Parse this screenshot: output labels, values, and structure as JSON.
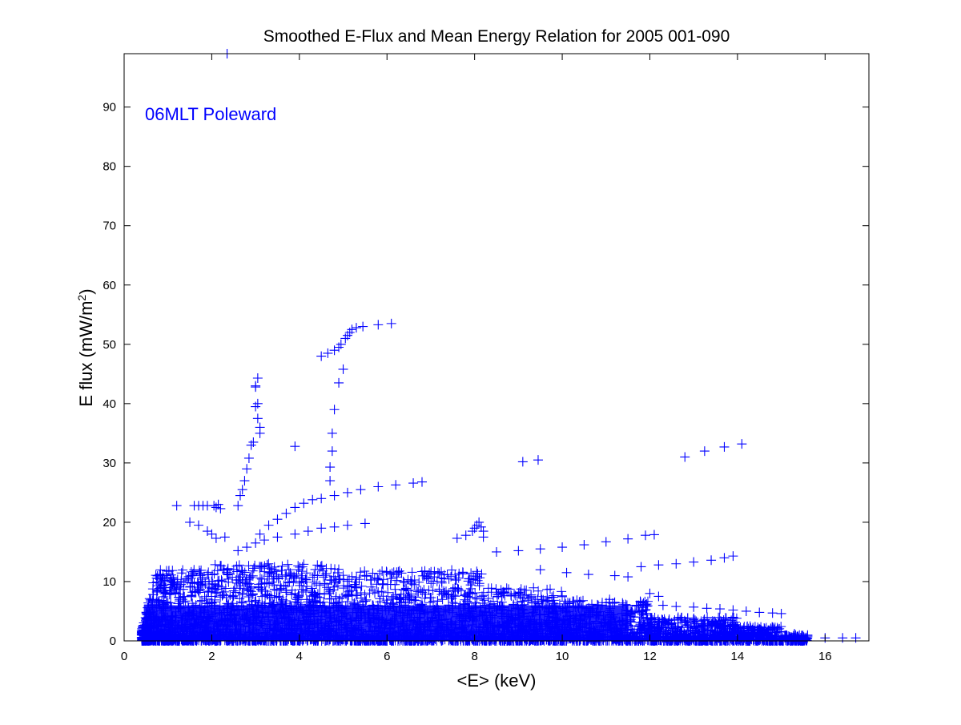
{
  "chart_data": {
    "type": "scatter",
    "title": "Smoothed E-Flux and Mean Energy Relation for 2005 001-090",
    "xlabel": "<E> (keV)",
    "ylabel_main": "E flux (mW/m",
    "ylabel_sup": "2",
    "ylabel_end": ")",
    "annotation": "06MLT Poleward",
    "xlim": [
      0,
      17
    ],
    "ylim": [
      0,
      99
    ],
    "xticks": [
      0,
      2,
      4,
      6,
      8,
      10,
      12,
      14,
      16
    ],
    "yticks": [
      0,
      10,
      20,
      30,
      40,
      50,
      60,
      70,
      80,
      90
    ],
    "grid": false,
    "marker": "+",
    "marker_color": "#0000ff",
    "series": [
      {
        "points": [
          [
            2.35,
            99.0
          ],
          [
            3.0,
            43.0
          ],
          [
            3.05,
            44.3
          ],
          [
            3.0,
            42.8
          ],
          [
            3.05,
            40.0
          ],
          [
            3.0,
            39.5
          ],
          [
            3.05,
            37.5
          ],
          [
            3.1,
            36.0
          ],
          [
            3.1,
            35.0
          ],
          [
            2.95,
            33.5
          ],
          [
            2.9,
            33.0
          ],
          [
            2.85,
            30.8
          ],
          [
            2.8,
            29.0
          ],
          [
            2.75,
            27.0
          ],
          [
            2.7,
            25.5
          ],
          [
            2.65,
            24.5
          ],
          [
            2.6,
            22.8
          ],
          [
            4.5,
            48.0
          ],
          [
            4.65,
            48.5
          ],
          [
            4.8,
            49.0
          ],
          [
            4.9,
            49.5
          ],
          [
            4.95,
            50.0
          ],
          [
            5.05,
            51.0
          ],
          [
            5.1,
            51.5
          ],
          [
            5.15,
            52.0
          ],
          [
            5.2,
            52.5
          ],
          [
            5.3,
            52.8
          ],
          [
            5.45,
            53.0
          ],
          [
            5.8,
            53.3
          ],
          [
            6.1,
            53.5
          ],
          [
            5.0,
            45.8
          ],
          [
            4.9,
            43.5
          ],
          [
            4.8,
            39.0
          ],
          [
            4.75,
            35.0
          ],
          [
            4.75,
            32.0
          ],
          [
            4.7,
            29.3
          ],
          [
            4.7,
            27.0
          ],
          [
            3.9,
            32.8
          ],
          [
            9.1,
            30.2
          ],
          [
            9.45,
            30.5
          ],
          [
            12.8,
            31.0
          ],
          [
            13.25,
            32.0
          ],
          [
            13.7,
            32.7
          ],
          [
            14.1,
            33.2
          ],
          [
            3.1,
            18.0
          ],
          [
            3.3,
            19.5
          ],
          [
            3.5,
            20.5
          ],
          [
            3.7,
            21.5
          ],
          [
            3.9,
            22.5
          ],
          [
            4.1,
            23.2
          ],
          [
            4.3,
            23.8
          ],
          [
            4.5,
            24.0
          ],
          [
            4.8,
            24.5
          ],
          [
            5.1,
            25.0
          ],
          [
            5.4,
            25.5
          ],
          [
            5.8,
            26.0
          ],
          [
            6.2,
            26.3
          ],
          [
            6.6,
            26.6
          ],
          [
            6.8,
            26.8
          ],
          [
            1.2,
            22.8
          ],
          [
            1.6,
            22.8
          ],
          [
            1.7,
            22.8
          ],
          [
            1.8,
            22.8
          ],
          [
            1.9,
            22.8
          ],
          [
            2.05,
            22.8
          ],
          [
            2.1,
            22.5
          ],
          [
            2.15,
            23.0
          ],
          [
            2.2,
            22.3
          ],
          [
            1.5,
            20.0
          ],
          [
            1.7,
            19.5
          ],
          [
            1.9,
            18.5
          ],
          [
            2.0,
            18.0
          ],
          [
            2.3,
            17.5
          ],
          [
            2.1,
            17.3
          ],
          [
            2.6,
            15.2
          ],
          [
            2.8,
            15.8
          ],
          [
            3.0,
            16.5
          ],
          [
            3.2,
            17.0
          ],
          [
            3.5,
            17.5
          ],
          [
            3.9,
            18.0
          ],
          [
            4.2,
            18.5
          ],
          [
            4.5,
            19.0
          ],
          [
            4.8,
            19.2
          ],
          [
            5.1,
            19.5
          ],
          [
            5.5,
            19.8
          ],
          [
            7.6,
            17.3
          ],
          [
            7.8,
            17.8
          ],
          [
            7.95,
            18.5
          ],
          [
            8.0,
            19.0
          ],
          [
            8.05,
            19.5
          ],
          [
            8.1,
            20.0
          ],
          [
            8.15,
            19.2
          ],
          [
            8.2,
            18.5
          ],
          [
            8.2,
            17.5
          ],
          [
            8.5,
            15.0
          ],
          [
            9.0,
            15.2
          ],
          [
            9.5,
            15.5
          ],
          [
            10.0,
            15.8
          ],
          [
            10.5,
            16.2
          ],
          [
            11.0,
            16.7
          ],
          [
            11.5,
            17.2
          ],
          [
            11.9,
            17.8
          ],
          [
            12.1,
            17.9
          ],
          [
            11.8,
            12.5
          ],
          [
            12.2,
            12.8
          ],
          [
            12.6,
            13.0
          ],
          [
            13.0,
            13.3
          ],
          [
            13.4,
            13.6
          ],
          [
            13.7,
            14.0
          ],
          [
            13.9,
            14.3
          ],
          [
            9.5,
            12.0
          ],
          [
            10.1,
            11.5
          ],
          [
            10.6,
            11.2
          ],
          [
            11.2,
            11.0
          ],
          [
            11.5,
            10.8
          ],
          [
            12.0,
            8.0
          ],
          [
            12.2,
            7.5
          ],
          [
            12.3,
            6.0
          ],
          [
            12.6,
            5.8
          ],
          [
            13.0,
            5.7
          ],
          [
            13.3,
            5.5
          ],
          [
            13.6,
            5.4
          ],
          [
            13.9,
            5.2
          ],
          [
            14.2,
            5.0
          ],
          [
            14.5,
            4.8
          ],
          [
            14.8,
            4.7
          ],
          [
            15.0,
            4.6
          ],
          [
            13.5,
            3.0
          ],
          [
            13.9,
            2.5
          ],
          [
            14.3,
            2.2
          ],
          [
            14.7,
            1.8
          ],
          [
            15.0,
            1.5
          ],
          [
            15.3,
            1.2
          ],
          [
            15.6,
            0.8
          ],
          [
            16.0,
            0.5
          ],
          [
            16.4,
            0.5
          ],
          [
            16.7,
            0.5
          ]
        ]
      }
    ]
  }
}
